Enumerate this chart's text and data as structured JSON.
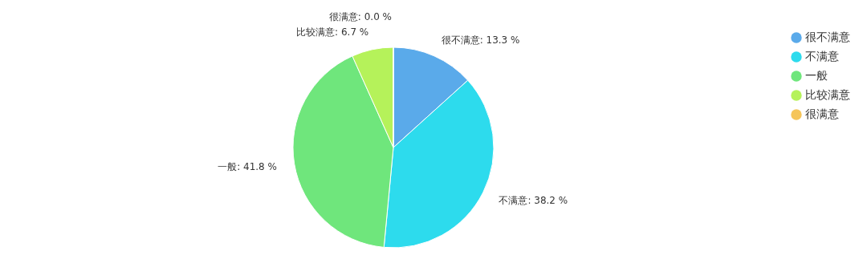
{
  "chart_data": {
    "type": "pie",
    "categories": [
      "很不满意",
      "不满意",
      "一般",
      "比较满意",
      "很满意"
    ],
    "values": [
      13.3,
      38.2,
      41.8,
      6.7,
      0.0
    ],
    "colors": [
      "#5aaaea",
      "#2ddbed",
      "#6fe67c",
      "#b5f25a",
      "#f5c55a"
    ],
    "value_labels": [
      "很不满意: 13.3 %",
      "不满意: 38.2 %",
      "一般: 41.8 %",
      "比较满意: 6.7 %",
      "很满意: 0.0 %"
    ],
    "legend": "top right"
  }
}
